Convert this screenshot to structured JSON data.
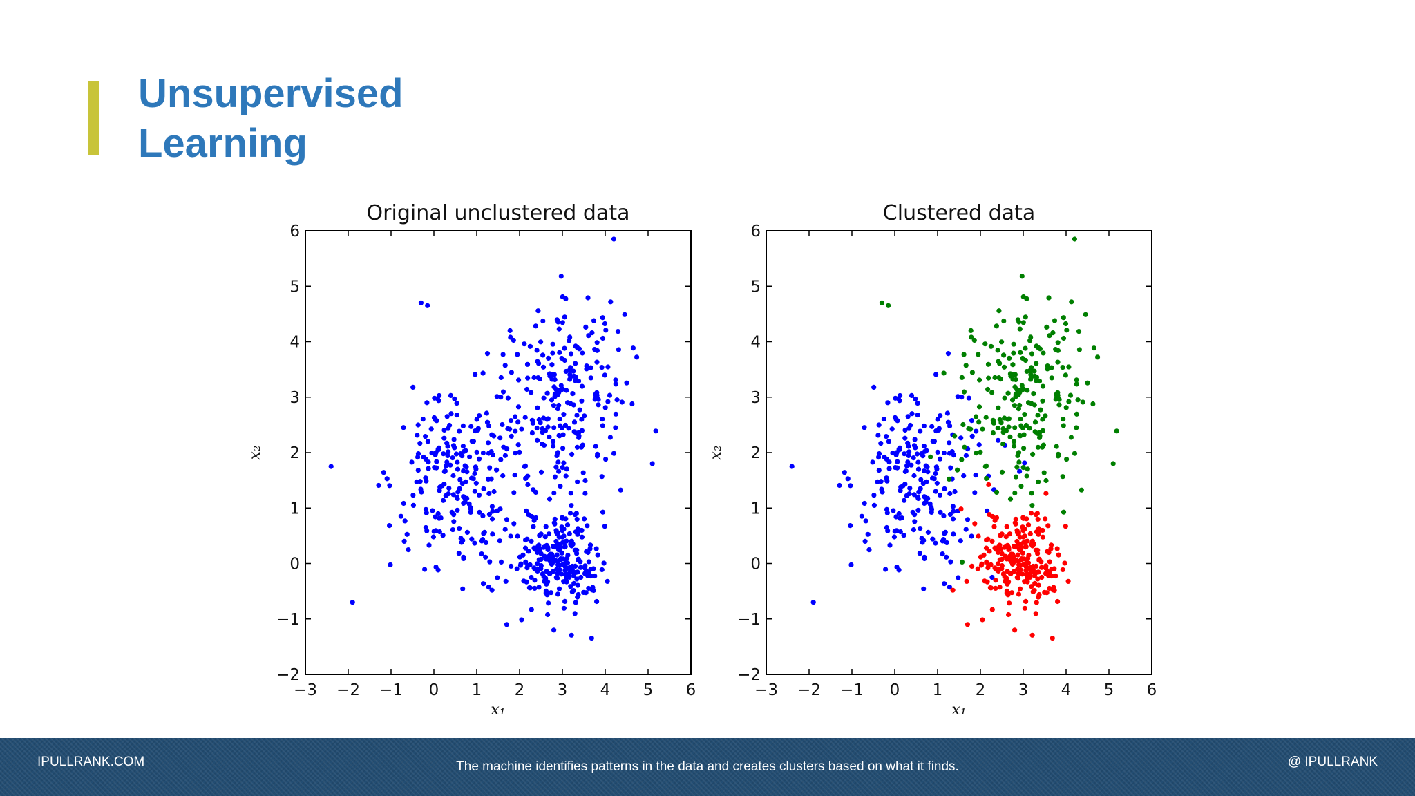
{
  "slide": {
    "title_line1": "Unsupervised",
    "title_line2": "Learning",
    "accent_color": "#c8c43a",
    "title_color": "#2e78ba"
  },
  "footer": {
    "left": "IPULLRANK.COM",
    "center": "The machine identifies patterns in the data and creates clusters based on what it finds.",
    "right": "@ IPULLRANK"
  },
  "chart_data": [
    {
      "type": "scatter",
      "title": "Original unclustered data",
      "xlabel": "x₁",
      "ylabel": "x₂",
      "xlim": [
        -3,
        6
      ],
      "ylim": [
        -2,
        6
      ],
      "xticks": [
        -3,
        -2,
        -1,
        0,
        1,
        2,
        3,
        4,
        5,
        6
      ],
      "yticks": [
        -2,
        -1,
        0,
        1,
        2,
        3,
        4,
        5,
        6
      ],
      "grid": false,
      "series": [
        {
          "color": "#0000ff",
          "clusters": [
            {
              "center": [
                0.6,
                1.6
              ],
              "spread": [
                0.8,
                0.85
              ],
              "count": 230
            },
            {
              "center": [
                3.0,
                3.0
              ],
              "spread": [
                0.75,
                0.95
              ],
              "count": 230
            },
            {
              "center": [
                2.9,
                0.1
              ],
              "spread": [
                0.5,
                0.45
              ],
              "count": 240
            }
          ],
          "points": [
            [
              -2.4,
              1.75
            ],
            [
              -0.3,
              4.7
            ],
            [
              -0.15,
              4.65
            ],
            [
              4.2,
              5.85
            ],
            [
              5.1,
              1.8
            ],
            [
              -1.9,
              -0.7
            ],
            [
              1.7,
              -1.1
            ],
            [
              2.8,
              -1.2
            ]
          ]
        }
      ]
    },
    {
      "type": "scatter",
      "title": "Clustered data",
      "xlabel": "x₁",
      "ylabel": "x₂",
      "xlim": [
        -3,
        6
      ],
      "ylim": [
        -2,
        6
      ],
      "xticks": [
        -3,
        -2,
        -1,
        0,
        1,
        2,
        3,
        4,
        5,
        6
      ],
      "yticks": [
        -2,
        -1,
        0,
        1,
        2,
        3,
        4,
        5,
        6
      ],
      "grid": false,
      "series": [
        {
          "color": "#0000ff",
          "clusters": [
            {
              "center": [
                0.6,
                1.6
              ],
              "spread": [
                0.8,
                0.85
              ],
              "count": 230
            }
          ],
          "points": [
            [
              -2.4,
              1.75
            ],
            [
              -1.9,
              -0.7
            ]
          ]
        },
        {
          "color": "#007f00",
          "clusters": [
            {
              "center": [
                3.0,
                3.0
              ],
              "spread": [
                0.75,
                0.95
              ],
              "count": 230
            }
          ],
          "points": [
            [
              -0.3,
              4.7
            ],
            [
              -0.15,
              4.65
            ],
            [
              4.2,
              5.85
            ],
            [
              5.1,
              1.8
            ]
          ]
        },
        {
          "color": "#ff0000",
          "clusters": [
            {
              "center": [
                2.9,
                0.1
              ],
              "spread": [
                0.5,
                0.45
              ],
              "count": 240
            }
          ],
          "points": [
            [
              1.7,
              -1.1
            ],
            [
              2.8,
              -1.2
            ]
          ]
        }
      ]
    }
  ]
}
